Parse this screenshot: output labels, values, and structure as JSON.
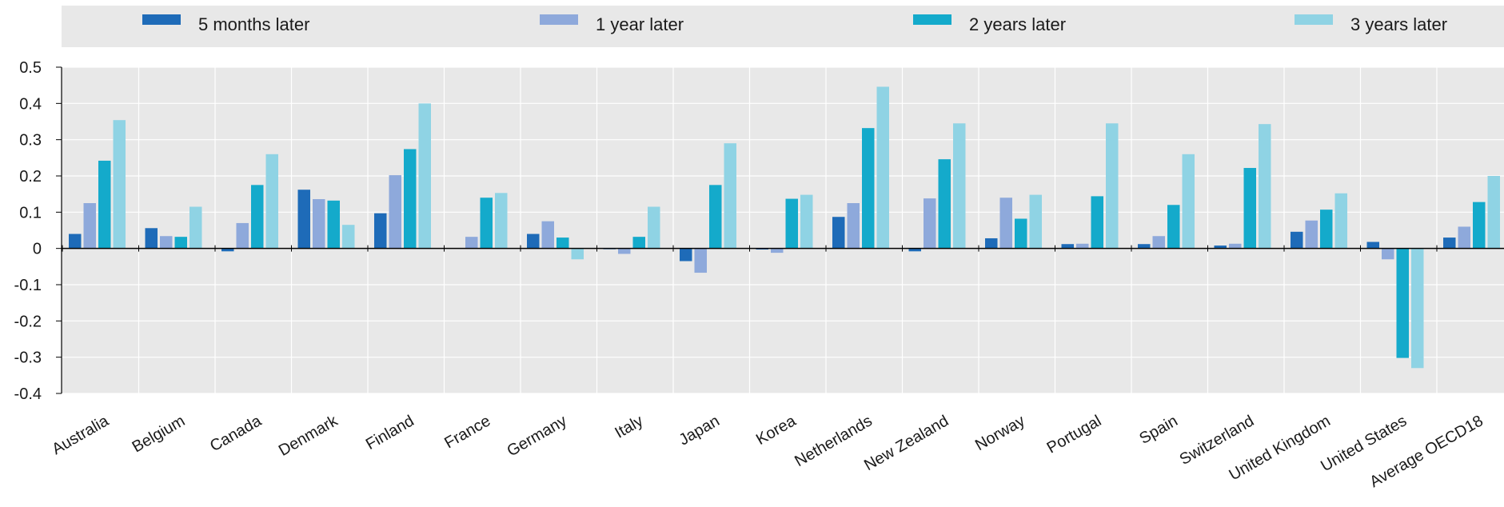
{
  "chart_data": {
    "type": "bar",
    "categories": [
      "Australia",
      "Belgium",
      "Canada",
      "Denmark",
      "Finland",
      "France",
      "Germany",
      "Italy",
      "Japan",
      "Korea",
      "Netherlands",
      "New Zealand",
      "Norway",
      "Portugal",
      "Spain",
      "Switzerland",
      "United Kingdom",
      "United States",
      "Average OECD18"
    ],
    "series": [
      {
        "name": "5 months later",
        "color": "#1e6bb8",
        "values": [
          0.04,
          0.056,
          -0.008,
          0.162,
          0.097,
          0.0,
          0.04,
          -0.002,
          -0.035,
          -0.003,
          0.087,
          -0.008,
          0.028,
          0.012,
          0.012,
          0.008,
          0.046,
          0.018,
          0.03
        ]
      },
      {
        "name": "1 year later",
        "color": "#8ea9db",
        "values": [
          0.125,
          0.034,
          0.07,
          0.136,
          0.202,
          0.032,
          0.075,
          -0.015,
          -0.067,
          -0.012,
          0.125,
          0.138,
          0.14,
          0.013,
          0.034,
          0.013,
          0.077,
          -0.03,
          0.06
        ]
      },
      {
        "name": "2 years later",
        "color": "#14aacb",
        "values": [
          0.242,
          0.032,
          0.175,
          0.132,
          0.274,
          0.14,
          0.03,
          0.032,
          0.175,
          0.137,
          0.332,
          0.246,
          0.082,
          0.144,
          0.12,
          0.222,
          0.107,
          -0.302,
          0.128
        ]
      },
      {
        "name": "3 years later",
        "color": "#8fd3e4",
        "values": [
          0.354,
          0.115,
          0.26,
          0.065,
          0.4,
          0.153,
          -0.03,
          0.115,
          0.29,
          0.148,
          0.446,
          0.345,
          0.148,
          0.345,
          0.26,
          0.343,
          0.152,
          -0.33,
          0.2
        ]
      }
    ],
    "ylim": [
      -0.4,
      0.5
    ],
    "yticks": [
      "0.5",
      "0.4",
      "0.3",
      "0.2",
      "0.1",
      "0",
      "-0.1",
      "-0.2",
      "-0.3",
      "-0.4"
    ],
    "ytick_values": [
      0.5,
      0.4,
      0.3,
      0.2,
      0.1,
      0,
      -0.1,
      -0.2,
      -0.3,
      -0.4
    ],
    "grid": true,
    "legend_position": "top",
    "plot_background": "#e8e8e8"
  }
}
